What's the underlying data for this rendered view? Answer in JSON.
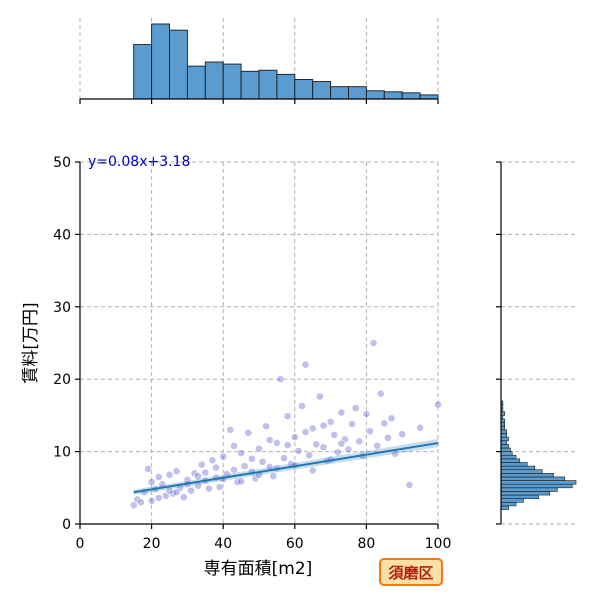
{
  "chart_data": {
    "type": "scatter",
    "xlabel": "専有面積[m2]",
    "ylabel": "賃料[万円]",
    "xlim": [
      0,
      100
    ],
    "ylim": [
      0,
      50
    ],
    "x_ticks": [
      0,
      20,
      40,
      60,
      80,
      100
    ],
    "y_ticks": [
      0,
      10,
      20,
      30,
      40,
      50
    ],
    "grid": true,
    "colors": {
      "points": "#4b4bcc",
      "regression": "#1f77b4",
      "histogram": "#5a9bd0"
    },
    "regression": {
      "equation": "y=0.08x+3.18",
      "slope": 0.08,
      "intercept": 3.18,
      "x_range": [
        15,
        100
      ]
    },
    "sample_points": [
      [
        15,
        2.6
      ],
      [
        16,
        3.4
      ],
      [
        17,
        3.0
      ],
      [
        18,
        4.4
      ],
      [
        19,
        7.6
      ],
      [
        20,
        3.2
      ],
      [
        21,
        4.8
      ],
      [
        22,
        6.5
      ],
      [
        23,
        5.5
      ],
      [
        24,
        3.9
      ],
      [
        25,
        6.8
      ],
      [
        26,
        4.2
      ],
      [
        27,
        7.3
      ],
      [
        28,
        5.0
      ],
      [
        29,
        3.7
      ],
      [
        30,
        6.1
      ],
      [
        31,
        4.6
      ],
      [
        32,
        7.0
      ],
      [
        33,
        5.3
      ],
      [
        34,
        8.2
      ],
      [
        35,
        6.0
      ],
      [
        36,
        4.9
      ],
      [
        37,
        8.8
      ],
      [
        38,
        6.4
      ],
      [
        39,
        5.1
      ],
      [
        40,
        9.3
      ],
      [
        41,
        6.9
      ],
      [
        42,
        13.0
      ],
      [
        43,
        7.5
      ],
      [
        44,
        5.8
      ],
      [
        45,
        9.8
      ],
      [
        46,
        8.0
      ],
      [
        47,
        12.6
      ],
      [
        48,
        7.2
      ],
      [
        49,
        6.3
      ],
      [
        50,
        10.4
      ],
      [
        51,
        8.6
      ],
      [
        52,
        13.5
      ],
      [
        53,
        7.9
      ],
      [
        54,
        6.6
      ],
      [
        55,
        11.2
      ],
      [
        56,
        20.0
      ],
      [
        57,
        9.1
      ],
      [
        58,
        14.9
      ],
      [
        59,
        8.3
      ],
      [
        60,
        12.0
      ],
      [
        61,
        10.1
      ],
      [
        62,
        16.3
      ],
      [
        63,
        22.0
      ],
      [
        64,
        9.5
      ],
      [
        65,
        13.2
      ],
      [
        66,
        11.0
      ],
      [
        67,
        17.6
      ],
      [
        68,
        10.6
      ],
      [
        69,
        8.7
      ],
      [
        70,
        14.1
      ],
      [
        71,
        12.3
      ],
      [
        72,
        9.9
      ],
      [
        73,
        15.4
      ],
      [
        74,
        11.7
      ],
      [
        75,
        10.3
      ],
      [
        76,
        13.8
      ],
      [
        77,
        16.0
      ],
      [
        78,
        11.4
      ],
      [
        79,
        9.4
      ],
      [
        80,
        15.2
      ],
      [
        81,
        12.8
      ],
      [
        82,
        25.0
      ],
      [
        83,
        10.8
      ],
      [
        84,
        18.0
      ],
      [
        85,
        13.9
      ],
      [
        86,
        11.9
      ],
      [
        87,
        14.6
      ],
      [
        88,
        9.7
      ],
      [
        90,
        12.4
      ],
      [
        92,
        5.4
      ],
      [
        95,
        13.3
      ],
      [
        100,
        16.5
      ],
      [
        20,
        5.8
      ],
      [
        25,
        4.6
      ],
      [
        30,
        5.5
      ],
      [
        35,
        7.1
      ],
      [
        40,
        6.2
      ],
      [
        45,
        5.9
      ],
      [
        50,
        6.8
      ],
      [
        55,
        7.7
      ],
      [
        60,
        8.1
      ],
      [
        65,
        7.4
      ],
      [
        70,
        8.9
      ],
      [
        22,
        3.6
      ],
      [
        27,
        4.4
      ],
      [
        33,
        6.6
      ],
      [
        38,
        7.8
      ],
      [
        43,
        10.8
      ],
      [
        48,
        9.0
      ],
      [
        53,
        11.6
      ],
      [
        58,
        10.9
      ],
      [
        63,
        12.7
      ],
      [
        68,
        13.6
      ],
      [
        73,
        11.1
      ]
    ],
    "x_histogram": {
      "bin_width": 5,
      "bin_start": 15,
      "counts": [
        53,
        73,
        67,
        32,
        36,
        34,
        27,
        28,
        24,
        19,
        17,
        12,
        12,
        8,
        7,
        6,
        4
      ]
    },
    "y_histogram": {
      "bin_width": 0.5,
      "bin_start": 2,
      "counts": [
        4,
        8,
        12,
        20,
        26,
        30,
        38,
        40,
        34,
        28,
        22,
        18,
        14,
        10,
        8,
        6,
        5,
        4,
        3,
        4,
        3,
        3,
        2,
        2,
        2,
        1,
        2,
        1,
        1,
        1
      ]
    }
  },
  "badge": {
    "label": "須磨区"
  }
}
